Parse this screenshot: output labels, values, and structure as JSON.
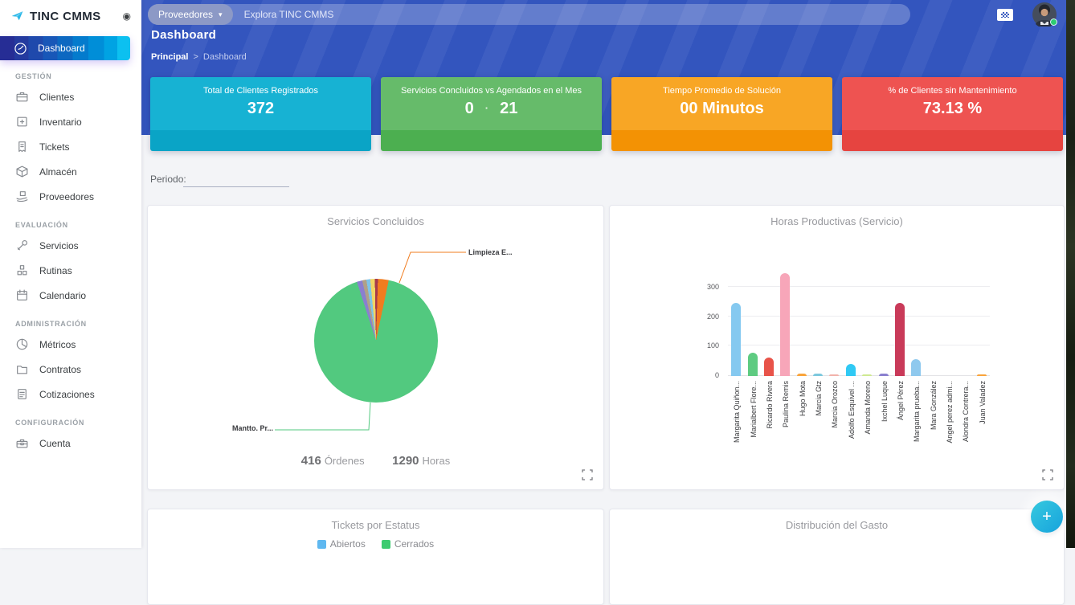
{
  "app": {
    "name": "TINC CMMS"
  },
  "topbar": {
    "category_button": {
      "label": "Proveedores",
      "caret": "▾"
    },
    "search": {
      "placeholder": "Explora TINC CMMS"
    }
  },
  "page": {
    "title": "Dashboard",
    "breadcrumb": {
      "parent": "Principal",
      "separator": ">",
      "current": "Dashboard"
    }
  },
  "sidebar": {
    "logo": "TINC CMMS",
    "active": {
      "label": "Dashboard",
      "icon": "gauge"
    },
    "sections": [
      {
        "title": "GESTIÓN",
        "items": [
          {
            "label": "Clientes",
            "icon": "briefcase"
          },
          {
            "label": "Inventario",
            "icon": "box-plus"
          },
          {
            "label": "Tickets",
            "icon": "ticket"
          },
          {
            "label": "Almacén",
            "icon": "package"
          },
          {
            "label": "Proveedores",
            "icon": "hand-box"
          }
        ]
      },
      {
        "title": "EVALUACIÓN",
        "items": [
          {
            "label": "Servicios",
            "icon": "wrench"
          },
          {
            "label": "Rutinas",
            "icon": "cubes"
          },
          {
            "label": "Calendario",
            "icon": "calendar"
          }
        ]
      },
      {
        "title": "ADMINISTRACIÓN",
        "items": [
          {
            "label": "Métricos",
            "icon": "pie"
          },
          {
            "label": "Contratos",
            "icon": "folder"
          },
          {
            "label": "Cotizaciones",
            "icon": "document"
          }
        ]
      },
      {
        "title": "CONFIGURACIÓN",
        "items": [
          {
            "label": "Cuenta",
            "icon": "toolbox"
          }
        ]
      }
    ]
  },
  "stat_cards": [
    {
      "label": "Total de Clientes Registrados",
      "values": [
        "372"
      ],
      "separator": "",
      "color": "#17b2d3",
      "color_dark": "#0aa4c6"
    },
    {
      "label": "Servicios Concluidos vs Agendados en el Mes",
      "values": [
        "0",
        "21"
      ],
      "separator": "·",
      "color": "#66bb6a",
      "color_dark": "#4caf50"
    },
    {
      "label": "Tiempo Promedio de Solución",
      "values": [
        "00 Minutos"
      ],
      "separator": "",
      "color": "#f8a625",
      "color_dark": "#f39204"
    },
    {
      "label": "% de Clientes sin Mantenimiento",
      "values": [
        "73.13 %"
      ],
      "separator": "",
      "color": "#ee5351",
      "color_dark": "#e64440"
    }
  ],
  "filters": {
    "period_label": "Periodo:",
    "period_value": ""
  },
  "chart_data": [
    {
      "type": "pie",
      "title": "Servicios Concluidos",
      "start_angle_deg": -18,
      "slices": [
        {
          "label": "",
          "percent": 1.4,
          "color": "#8a7fd0"
        },
        {
          "label": "",
          "percent": 1.1,
          "color": "#b0a188"
        },
        {
          "label": "",
          "percent": 1.0,
          "color": "#7fc4e8"
        },
        {
          "label": "",
          "percent": 1.2,
          "color": "#f0d564"
        },
        {
          "label": "",
          "percent": 0.8,
          "color": "#a63a4c"
        },
        {
          "label": "Limpieza E...",
          "percent": 2.8,
          "color": "#f07c1f"
        },
        {
          "label": "Mantto. Pr...",
          "percent": 91.7,
          "color": "#52c97f"
        }
      ],
      "callouts": [
        {
          "label": "Limpieza E...",
          "color": "#f07c1f"
        },
        {
          "label": "Mantto. Pr...",
          "color": "#52c97f"
        }
      ],
      "footer": [
        {
          "value": "416",
          "unit": "Órdenes"
        },
        {
          "value": "1290",
          "unit": "Horas"
        }
      ]
    },
    {
      "type": "bar",
      "title": "Horas Productivas (Servicio)",
      "categories": [
        "Margarita Quiñon...",
        "Marialbert Flore...",
        "Ricardo Rivera",
        "Paulina Remis",
        "Hugo Mota",
        "Marcia Gtz",
        "Marcia Orozco",
        "Adolfo Esquivel ...",
        "Amanda Moreno",
        "Ixchel Luque",
        "Ángel Pérez",
        "Margarita prueba...",
        "Mara González",
        "Angel perez admi...",
        "Alondra Contrera...",
        "Juan Valadez"
      ],
      "values": [
        248,
        78,
        64,
        348,
        9,
        8,
        3,
        42,
        4,
        7,
        247,
        56,
        0,
        0,
        0,
        5
      ],
      "colors": [
        "#85c9f0",
        "#5ecb81",
        "#e85349",
        "#f7a6b9",
        "#f9a43b",
        "#7cc8dd",
        "#f2b3ab",
        "#30c9f4",
        "#cfe992",
        "#8a80cf",
        "#c93a59",
        "#8fc9ee",
        "#cccccc",
        "#cccccc",
        "#cccccc",
        "#f9a43b"
      ],
      "yticks": [
        0,
        100,
        200,
        300
      ],
      "ylim": [
        0,
        360
      ],
      "grid": true,
      "ylabel": "",
      "xlabel": ""
    },
    {
      "type": "bar",
      "title": "Tickets por Estatus",
      "legend": [
        {
          "label": "Abiertos",
          "color": "#5fb8f0"
        },
        {
          "label": "Cerrados",
          "color": "#3ecb71"
        }
      ]
    },
    {
      "type": "pie",
      "title": "Distribución del Gasto"
    }
  ],
  "fab": {
    "label": "+"
  }
}
